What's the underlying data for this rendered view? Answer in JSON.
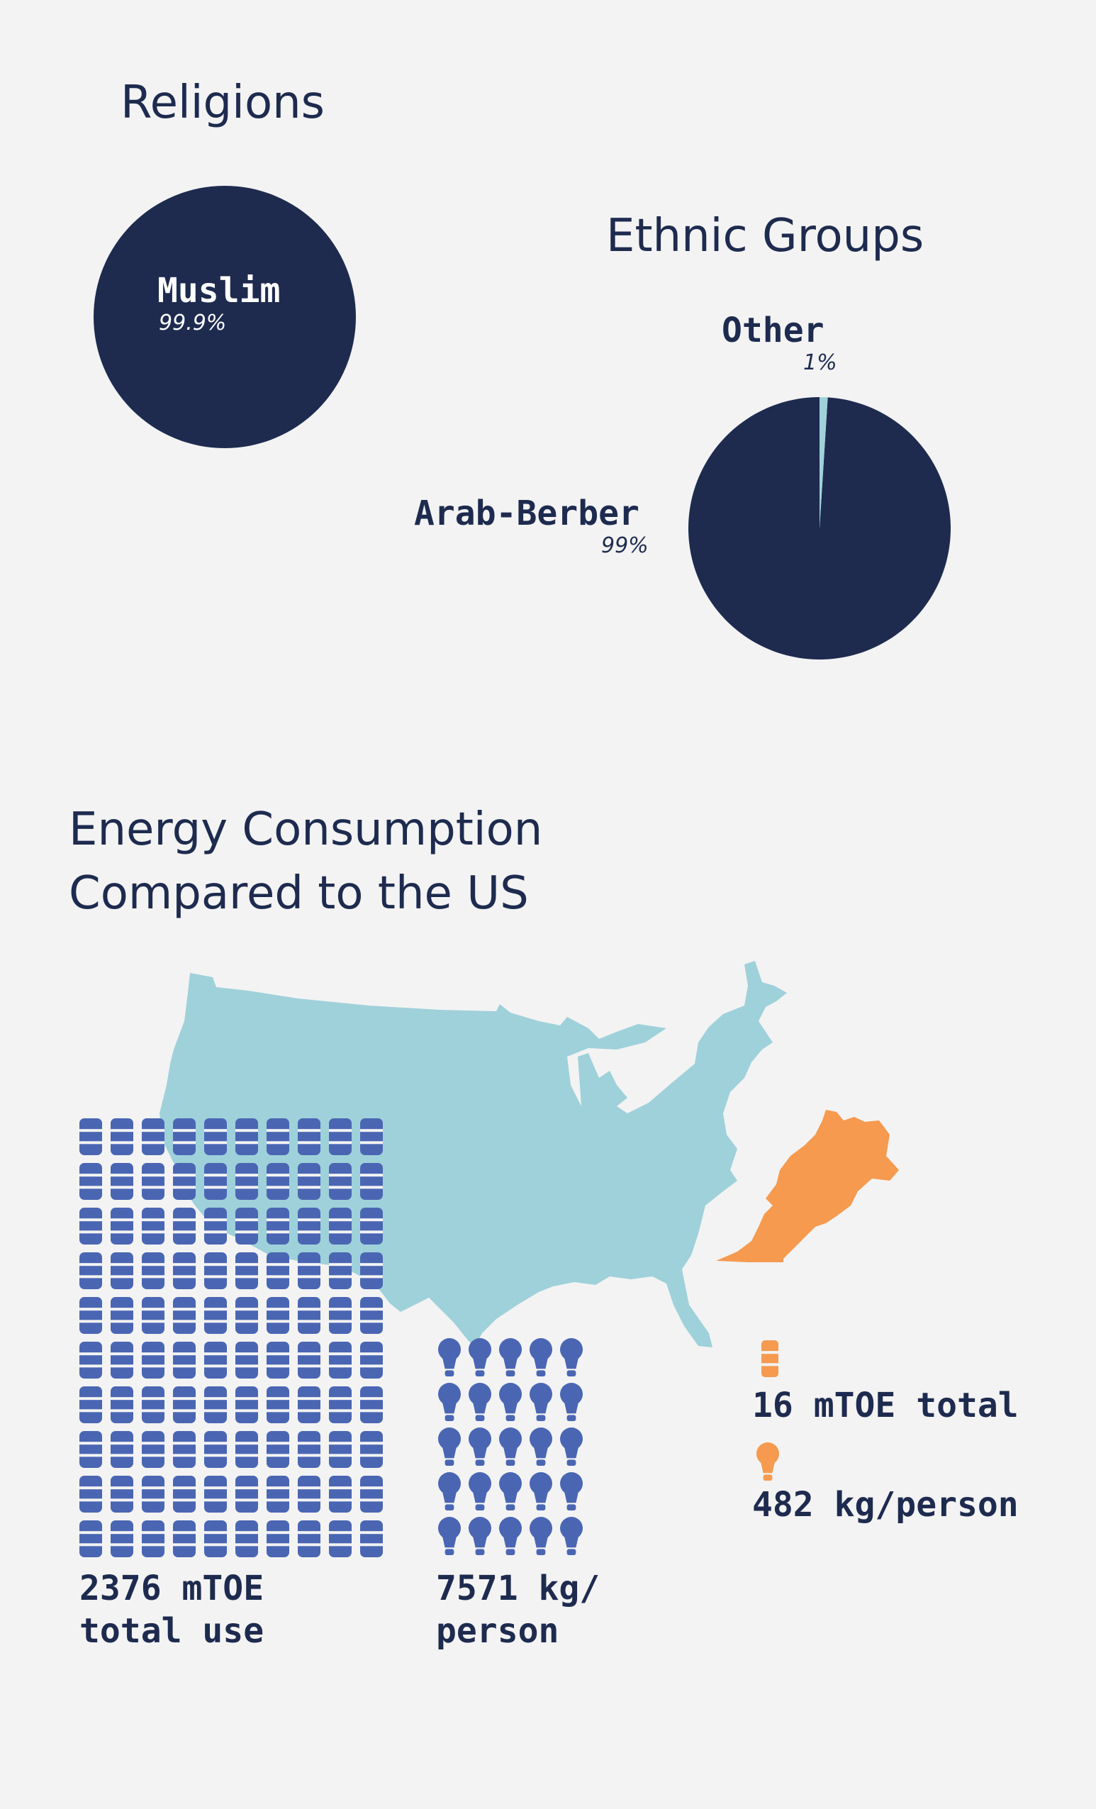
{
  "colors": {
    "navy": "#1e2b4f",
    "light_blue": "#9fd1da",
    "icon_blue": "#4a66b3",
    "orange": "#f59a4f",
    "background": "#f3f3f3"
  },
  "icons": {
    "barrel": "oil-barrel-icon",
    "bulb": "light-bulb-icon"
  },
  "chart_data": [
    {
      "type": "pie",
      "title": "Religions",
      "slices": [
        {
          "label": "Muslim",
          "value": 99.9,
          "display": "99.9%"
        }
      ]
    },
    {
      "type": "pie",
      "title": "Ethnic Groups",
      "slices": [
        {
          "label": "Arab-Berber",
          "value": 99,
          "display": "99%"
        },
        {
          "label": "Other",
          "value": 1,
          "display": "1%"
        }
      ]
    },
    {
      "type": "pictograph",
      "title": "Energy Consumption\nCompared to the US",
      "groups": [
        {
          "name": "US total",
          "icon": "oil-barrel-icon",
          "count": 100,
          "value_label": "2376 mTOE\ntotal use"
        },
        {
          "name": "US per person",
          "icon": "light-bulb-icon",
          "count": 25,
          "value_label": "7571 kg/\nperson"
        },
        {
          "name": "Morocco total",
          "icon": "oil-barrel-icon",
          "count": 1,
          "value_label": "16 mTOE total"
        },
        {
          "name": "Morocco per person",
          "icon": "light-bulb-icon",
          "count": 1,
          "value_label": "482 kg/person"
        }
      ]
    }
  ]
}
